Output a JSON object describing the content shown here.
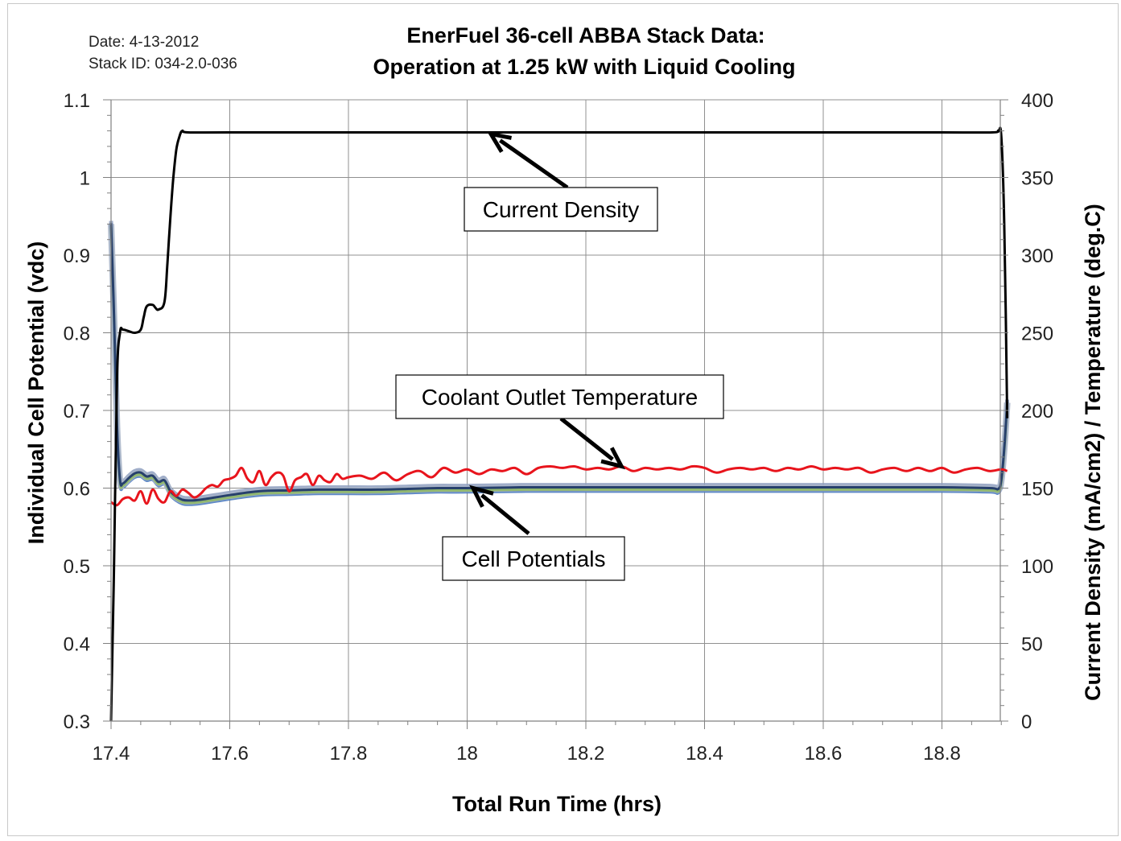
{
  "header": {
    "date_text": "Date: 4-13-2012",
    "stack_id_text": "Stack ID: 034-2.0-036",
    "title_line1": "EnerFuel 36-cell ABBA Stack Data:",
    "title_line2": "Operation at 1.25 kW with Liquid Cooling"
  },
  "chart_data": {
    "type": "line",
    "title": "EnerFuel 36-cell ABBA Stack Data: Operation at 1.25 kW with Liquid Cooling",
    "xlabel": "Total Run Time (hrs)",
    "ylabel_left": "Individual Cell Potential (vdc)",
    "ylabel_right": "Current Density (mA/cm2) / Temperature (deg.C)",
    "x_ticks": [
      "17.4",
      "17.6",
      "17.8",
      "18",
      "18.2",
      "18.4",
      "18.6",
      "18.8"
    ],
    "y_left_ticks": [
      "0.3",
      "0.4",
      "0.5",
      "0.6",
      "0.7",
      "0.8",
      "0.9",
      "1",
      "1.1"
    ],
    "y_right_ticks": [
      "0",
      "50",
      "100",
      "150",
      "200",
      "250",
      "300",
      "350",
      "400"
    ],
    "xlim": [
      17.4,
      18.92
    ],
    "ylim_left": [
      0.3,
      1.1
    ],
    "ylim_right": [
      0,
      400
    ],
    "grid": true,
    "colors": {
      "current_density": "#000000",
      "coolant_temp": "#e8141c",
      "cell_band_outer": "#8e9fc0",
      "cell_band_fill": "#a8b5c8",
      "cell_line_a": "#27406c",
      "cell_line_b": "#4e7cc0",
      "cell_line_c": "#8fb866",
      "grid": "#909090"
    },
    "annotations": [
      {
        "label": "Current Density",
        "target": [
          18.04,
          378
        ]
      },
      {
        "label": "Coolant Outlet Temperature",
        "target": [
          18.26,
          164
        ]
      },
      {
        "label": "Cell Potentials",
        "target": [
          18.01,
          0.6
        ]
      }
    ],
    "series": [
      {
        "name": "Current Density",
        "axis": "right",
        "x": [
          17.4,
          17.405,
          17.41,
          17.415,
          17.42,
          17.43,
          17.44,
          17.45,
          17.455,
          17.46,
          17.47,
          17.475,
          17.48,
          17.49,
          17.495,
          17.5,
          17.505,
          17.51,
          17.515,
          17.52,
          17.53,
          17.6,
          17.8,
          18.0,
          18.2,
          18.4,
          18.6,
          18.8,
          18.885,
          18.895,
          18.9,
          18.905,
          18.91
        ],
        "y": [
          0,
          100,
          220,
          250,
          252,
          251,
          250,
          252,
          260,
          267,
          268,
          266,
          265,
          270,
          295,
          325,
          350,
          368,
          376,
          380,
          379,
          379,
          379,
          379,
          379,
          379,
          379,
          379,
          379,
          380,
          376,
          320,
          195
        ]
      },
      {
        "name": "Coolant Outlet Temperature",
        "axis": "right",
        "x": [
          17.4,
          17.41,
          17.42,
          17.43,
          17.44,
          17.45,
          17.46,
          17.47,
          17.48,
          17.49,
          17.5,
          17.51,
          17.52,
          17.53,
          17.54,
          17.55,
          17.56,
          17.57,
          17.58,
          17.59,
          17.6,
          17.61,
          17.62,
          17.63,
          17.64,
          17.65,
          17.66,
          17.67,
          17.68,
          17.69,
          17.7,
          17.71,
          17.72,
          17.73,
          17.74,
          17.75,
          17.76,
          17.77,
          17.78,
          17.79,
          17.8,
          17.82,
          17.84,
          17.86,
          17.88,
          17.9,
          17.92,
          17.94,
          17.96,
          17.98,
          18.0,
          18.02,
          18.04,
          18.06,
          18.08,
          18.1,
          18.12,
          18.14,
          18.16,
          18.18,
          18.2,
          18.22,
          18.24,
          18.26,
          18.28,
          18.3,
          18.32,
          18.34,
          18.36,
          18.38,
          18.4,
          18.42,
          18.44,
          18.46,
          18.48,
          18.5,
          18.52,
          18.54,
          18.56,
          18.58,
          18.6,
          18.62,
          18.64,
          18.66,
          18.68,
          18.7,
          18.72,
          18.74,
          18.76,
          18.78,
          18.8,
          18.82,
          18.84,
          18.86,
          18.88,
          18.9,
          18.91
        ],
        "y": [
          141,
          139,
          143,
          144,
          142,
          148,
          140,
          149,
          143,
          141,
          148,
          145,
          149,
          147,
          144,
          146,
          150,
          152,
          151,
          155,
          156,
          158,
          163,
          156,
          154,
          161,
          152,
          157,
          160,
          158,
          148,
          155,
          157,
          159,
          152,
          158,
          155,
          154,
          159,
          156,
          157,
          158,
          156,
          160,
          155,
          159,
          161,
          157,
          163,
          160,
          162,
          159,
          162,
          161,
          163,
          159,
          163,
          164,
          163,
          164,
          162,
          163,
          162,
          164,
          161,
          163,
          162,
          163,
          162,
          164,
          163,
          160,
          162,
          163,
          162,
          163,
          161,
          163,
          162,
          164,
          162,
          163,
          162,
          163,
          160,
          162,
          163,
          161,
          163,
          161,
          163,
          160,
          162,
          163,
          161,
          162,
          161
        ]
      },
      {
        "name": "Cell Potentials",
        "axis": "left",
        "x": [
          17.4,
          17.405,
          17.41,
          17.415,
          17.42,
          17.43,
          17.44,
          17.45,
          17.46,
          17.47,
          17.48,
          17.49,
          17.5,
          17.51,
          17.52,
          17.53,
          17.55,
          17.6,
          17.65,
          17.7,
          17.75,
          17.8,
          17.85,
          17.9,
          17.95,
          18.0,
          18.1,
          18.2,
          18.3,
          18.4,
          18.5,
          18.6,
          18.7,
          18.8,
          18.88,
          18.895,
          18.9,
          18.905,
          18.91
        ],
        "y": [
          0.94,
          0.82,
          0.68,
          0.61,
          0.605,
          0.612,
          0.618,
          0.619,
          0.614,
          0.615,
          0.607,
          0.609,
          0.595,
          0.588,
          0.584,
          0.583,
          0.584,
          0.59,
          0.595,
          0.596,
          0.597,
          0.597,
          0.597,
          0.598,
          0.599,
          0.599,
          0.6,
          0.6,
          0.6,
          0.6,
          0.6,
          0.6,
          0.6,
          0.6,
          0.599,
          0.598,
          0.61,
          0.65,
          0.71
        ]
      }
    ]
  }
}
